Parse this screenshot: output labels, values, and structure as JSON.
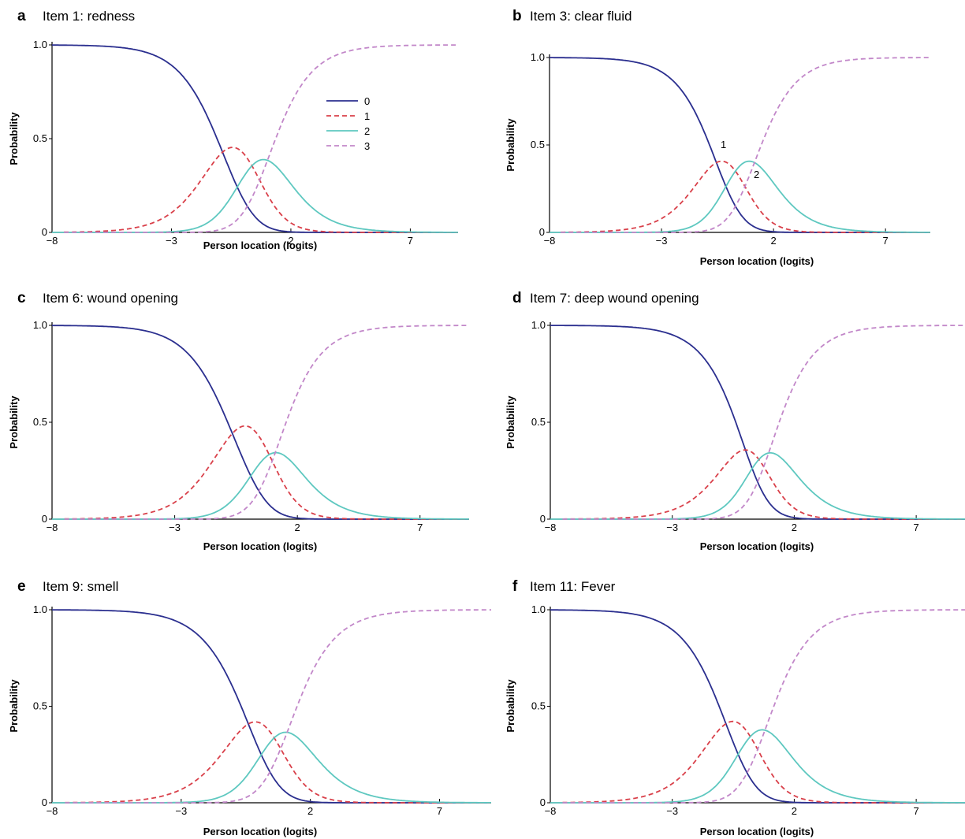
{
  "colors": {
    "0": "#2b2f8f",
    "1": "#d9404a",
    "2": "#5ec8c0",
    "3": "#c287c9"
  },
  "legend": [
    "0",
    "1",
    "2",
    "3"
  ],
  "chart_data": [
    {
      "panel": "a",
      "title": "Item 1: redness",
      "type": "line",
      "xlabel": "Person location (logits)",
      "ylabel": "Probability",
      "xlim": [
        -8,
        9
      ],
      "ylim": [
        0,
        1
      ],
      "xticks": [
        "−8",
        "−3",
        "2",
        "7"
      ],
      "yticks": [
        "0",
        "0.5",
        "1.0"
      ],
      "thresholds": [
        -0.86,
        0.37,
        1.02
      ],
      "legend_position": "upper-middle",
      "series": [
        {
          "name": "0",
          "style": "solid",
          "x": [
            -8,
            -4,
            -2,
            -1,
            0,
            1,
            2,
            4,
            9
          ],
          "y": [
            1.0,
            0.97,
            0.74,
            0.5,
            0.19,
            0.04,
            0.01,
            0.0,
            0.0
          ]
        },
        {
          "name": "1",
          "style": "dashed",
          "x": [
            -8,
            -4,
            -2,
            -1,
            0,
            1,
            2,
            4,
            9
          ],
          "y": [
            0.01,
            0.03,
            0.24,
            0.43,
            0.36,
            0.13,
            0.03,
            0.0,
            0.0
          ]
        },
        {
          "name": "2",
          "style": "solid",
          "x": [
            -8,
            -4,
            -2,
            -1,
            0,
            1,
            2,
            4,
            9
          ],
          "y": [
            0.0,
            0.0,
            0.02,
            0.06,
            0.19,
            0.25,
            0.16,
            0.03,
            0.0
          ]
        },
        {
          "name": "3",
          "style": "dashed",
          "x": [
            -8,
            -4,
            -2,
            -1,
            0,
            1,
            2,
            4,
            9
          ],
          "y": [
            0.0,
            0.0,
            0.0,
            0.01,
            0.26,
            0.58,
            0.8,
            0.97,
            1.0
          ]
        }
      ]
    },
    {
      "panel": "b",
      "title": "Item 3: clear fluid",
      "type": "line",
      "xlabel": "Person location (logits)",
      "ylabel": "Probability",
      "xlim": [
        -8,
        9
      ],
      "ylim": [
        0,
        1
      ],
      "xticks": [
        "−8",
        "−3",
        "2",
        "7"
      ],
      "yticks": [
        "0",
        "0.5",
        "1.0"
      ],
      "thresholds": [
        -0.55,
        0.3,
        1.15
      ],
      "annotations": [
        "1",
        "2"
      ],
      "series": [
        {
          "name": "0",
          "style": "solid",
          "x": [
            -8,
            -4,
            -2,
            -1,
            0,
            1,
            2,
            4,
            9
          ],
          "y": [
            1.0,
            0.97,
            0.79,
            0.58,
            0.23,
            0.05,
            0.01,
            0.0,
            0.0
          ]
        },
        {
          "name": "1",
          "style": "dashed",
          "x": [
            -8,
            -4,
            -2,
            -1,
            0,
            1,
            2,
            4,
            9
          ],
          "y": [
            0.01,
            0.03,
            0.2,
            0.42,
            0.4,
            0.17,
            0.04,
            0.0,
            0.0
          ]
        },
        {
          "name": "2",
          "style": "solid",
          "x": [
            -8,
            -4,
            -2,
            -1,
            0,
            1,
            2,
            4,
            9
          ],
          "y": [
            0.0,
            0.0,
            0.01,
            0.04,
            0.23,
            0.28,
            0.18,
            0.03,
            0.0
          ]
        },
        {
          "name": "3",
          "style": "dashed",
          "x": [
            -8,
            -4,
            -2,
            -1,
            0,
            1,
            2,
            4,
            9
          ],
          "y": [
            0.0,
            0.0,
            0.0,
            0.0,
            0.14,
            0.5,
            0.77,
            0.97,
            1.0
          ]
        }
      ]
    },
    {
      "panel": "c",
      "title": "Item 6: wound opening",
      "type": "line",
      "xlabel": "Person location (logits)",
      "ylabel": "Probability",
      "xlim": [
        -8,
        9
      ],
      "ylim": [
        0,
        1
      ],
      "xticks": [
        "−8",
        "−3",
        "2",
        "7"
      ],
      "yticks": [
        "0",
        "0.5",
        "1.0"
      ],
      "thresholds": [
        -0.65,
        0.85,
        1.1
      ],
      "series": [
        {
          "name": "0",
          "style": "solid",
          "x": [
            -8,
            -4,
            -2,
            -1,
            0,
            1,
            2,
            4,
            9
          ],
          "y": [
            1.0,
            0.97,
            0.78,
            0.55,
            0.23,
            0.04,
            0.0,
            0.0,
            0.0
          ]
        },
        {
          "name": "1",
          "style": "dashed",
          "x": [
            -8,
            -4,
            -2,
            -1,
            0,
            1,
            2,
            4,
            9
          ],
          "y": [
            0.01,
            0.04,
            0.23,
            0.41,
            0.46,
            0.22,
            0.03,
            0.0,
            0.0
          ]
        },
        {
          "name": "2",
          "style": "solid",
          "x": [
            -8,
            -4,
            -2,
            -1,
            0,
            1,
            2,
            4,
            9
          ],
          "y": [
            0.0,
            0.0,
            0.0,
            0.03,
            0.1,
            0.2,
            0.15,
            0.03,
            0.0
          ]
        },
        {
          "name": "3",
          "style": "dashed",
          "x": [
            -8,
            -4,
            -2,
            -1,
            0,
            1,
            2,
            4,
            9
          ],
          "y": [
            0.0,
            0.0,
            0.0,
            0.01,
            0.21,
            0.54,
            0.82,
            0.97,
            1.0
          ]
        }
      ]
    },
    {
      "panel": "d",
      "title": "Item 7: deep wound opening",
      "type": "line",
      "xlabel": "Person location (logits)",
      "ylabel": "Probability",
      "xlim": [
        -8,
        9
      ],
      "ylim": [
        0,
        1
      ],
      "xticks": [
        "−8",
        "−3",
        "2",
        "7"
      ],
      "yticks": [
        "0",
        "0.5",
        "1.0"
      ],
      "thresholds": [
        0.0,
        0.55,
        0.95
      ],
      "series": [
        {
          "name": "0",
          "style": "solid",
          "x": [
            -8,
            -4,
            -2,
            -1,
            0,
            1,
            2,
            4,
            9
          ],
          "y": [
            1.0,
            0.99,
            0.88,
            0.73,
            0.5,
            0.16,
            0.02,
            0.0,
            0.0
          ]
        },
        {
          "name": "1",
          "style": "dashed",
          "x": [
            -8,
            -4,
            -2,
            -1,
            0,
            1,
            2,
            4,
            9
          ],
          "y": [
            0.0,
            0.01,
            0.1,
            0.22,
            0.36,
            0.24,
            0.06,
            0.0,
            0.0
          ]
        },
        {
          "name": "2",
          "style": "solid",
          "x": [
            -8,
            -4,
            -2,
            -1,
            0,
            1,
            2,
            4,
            9
          ],
          "y": [
            0.0,
            0.0,
            0.01,
            0.04,
            0.12,
            0.22,
            0.16,
            0.03,
            0.0
          ]
        },
        {
          "name": "3",
          "style": "dashed",
          "x": [
            -8,
            -4,
            -2,
            -1,
            0,
            1,
            2,
            4,
            9
          ],
          "y": [
            0.0,
            0.0,
            0.0,
            0.01,
            0.02,
            0.38,
            0.76,
            0.97,
            1.0
          ]
        }
      ]
    },
    {
      "panel": "e",
      "title": "Item 9: smell",
      "type": "line",
      "xlabel": "Person location (logits)",
      "ylabel": "Probability",
      "xlim": [
        -8,
        9
      ],
      "ylim": [
        0,
        1
      ],
      "xticks": [
        "−8",
        "−3",
        "2",
        "7"
      ],
      "yticks": [
        "0",
        "0.5",
        "1.0"
      ],
      "thresholds": [
        -0.4,
        0.6,
        1.1
      ],
      "series": [
        {
          "name": "0",
          "style": "solid",
          "x": [
            -8,
            -4,
            -2,
            -1,
            0,
            1,
            2,
            4,
            9
          ],
          "y": [
            1.0,
            0.98,
            0.82,
            0.62,
            0.3,
            0.07,
            0.01,
            0.0,
            0.0
          ]
        },
        {
          "name": "1",
          "style": "dashed",
          "x": [
            -8,
            -4,
            -2,
            -1,
            0,
            1,
            2,
            4,
            9
          ],
          "y": [
            0.0,
            0.02,
            0.17,
            0.33,
            0.39,
            0.22,
            0.05,
            0.0,
            0.0
          ]
        },
        {
          "name": "2",
          "style": "solid",
          "x": [
            -8,
            -4,
            -2,
            -1,
            0,
            1,
            2,
            4,
            9
          ],
          "y": [
            0.0,
            0.0,
            0.01,
            0.04,
            0.16,
            0.26,
            0.18,
            0.03,
            0.0
          ]
        },
        {
          "name": "3",
          "style": "dashed",
          "x": [
            -8,
            -4,
            -2,
            -1,
            0,
            1,
            2,
            4,
            9
          ],
          "y": [
            0.0,
            0.0,
            0.0,
            0.01,
            0.15,
            0.45,
            0.76,
            0.97,
            1.0
          ]
        }
      ]
    },
    {
      "panel": "f",
      "title": "Item 11: Fever",
      "type": "line",
      "xlabel": "Person location (logits)",
      "ylabel": "Probability",
      "xlim": [
        -8,
        9
      ],
      "ylim": [
        0,
        1
      ],
      "xticks": [
        "−8",
        "−3",
        "2",
        "7"
      ],
      "yticks": [
        "0",
        "0.5",
        "1.0"
      ],
      "thresholds": [
        -0.8,
        0.2,
        0.8
      ],
      "series": [
        {
          "name": "0",
          "style": "solid",
          "x": [
            -8,
            -4,
            -2,
            -1,
            0,
            1,
            2,
            4,
            9
          ],
          "y": [
            1.0,
            0.97,
            0.74,
            0.5,
            0.18,
            0.04,
            0.01,
            0.0,
            0.0
          ]
        },
        {
          "name": "1",
          "style": "dashed",
          "x": [
            -8,
            -4,
            -2,
            -1,
            0,
            1,
            2,
            4,
            9
          ],
          "y": [
            0.01,
            0.03,
            0.22,
            0.36,
            0.31,
            0.11,
            0.02,
            0.0,
            0.0
          ]
        },
        {
          "name": "2",
          "style": "solid",
          "x": [
            -8,
            -4,
            -2,
            -1,
            0,
            1,
            2,
            4,
            9
          ],
          "y": [
            0.0,
            0.0,
            0.02,
            0.09,
            0.29,
            0.22,
            0.11,
            0.02,
            0.0
          ]
        },
        {
          "name": "3",
          "style": "dashed",
          "x": [
            -8,
            -4,
            -2,
            -1,
            0,
            1,
            2,
            4,
            9
          ],
          "y": [
            0.0,
            0.0,
            0.0,
            0.02,
            0.25,
            0.63,
            0.86,
            0.98,
            1.0
          ]
        }
      ]
    }
  ]
}
